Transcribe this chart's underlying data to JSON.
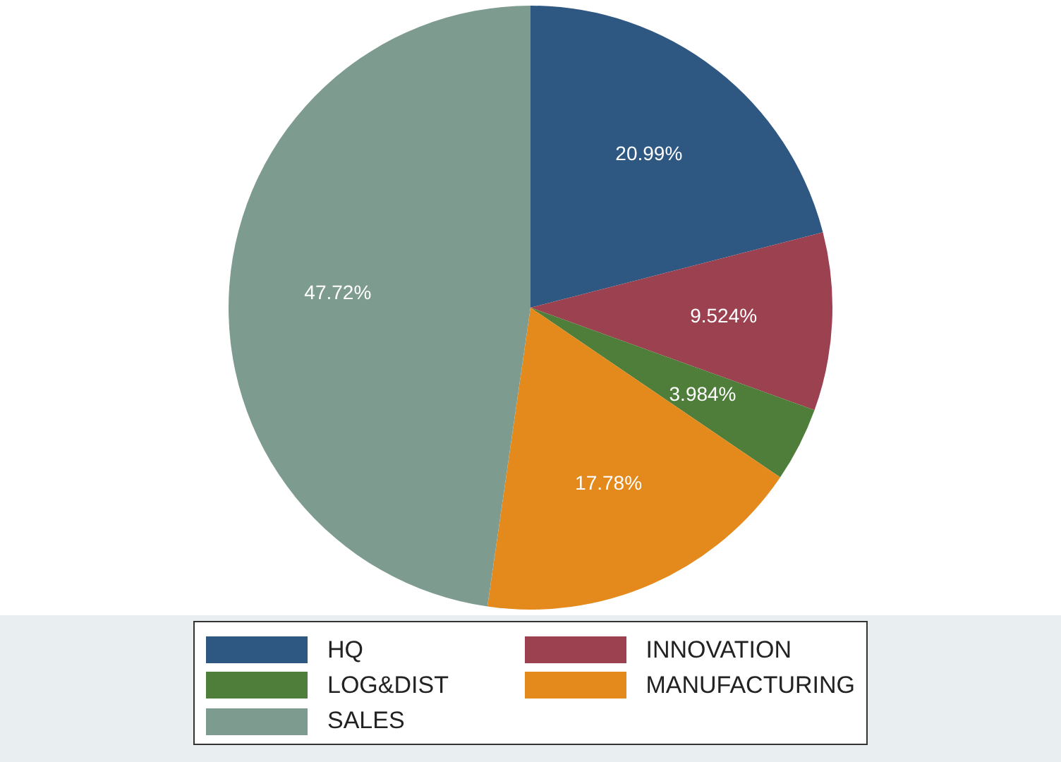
{
  "chart_data": {
    "type": "pie",
    "categories": [
      "HQ",
      "INNOVATION",
      "LOG&DIST",
      "MANUFACTURING",
      "SALES"
    ],
    "values": [
      20.99,
      9.524,
      3.984,
      17.78,
      47.72
    ],
    "colors": [
      "#2e5782",
      "#9b4150",
      "#4f7e3b",
      "#e48a1c",
      "#7e9b90"
    ],
    "value_labels": [
      "20.99%",
      "9.524%",
      "3.984%",
      "17.78%",
      "47.72%"
    ],
    "legend": "bottom"
  }
}
